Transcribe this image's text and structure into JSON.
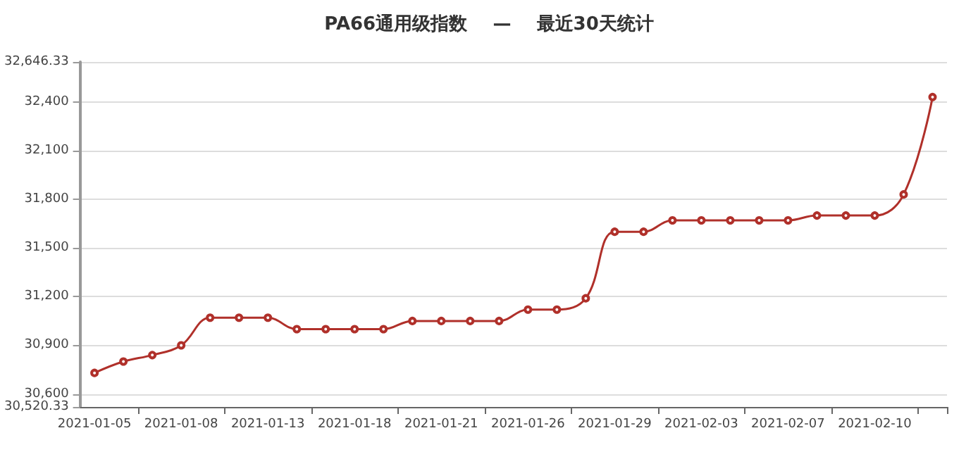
{
  "chart_data": {
    "type": "line",
    "title": "PA66通用级指数    —    最近30天统计",
    "categories": [
      "2021-01-05",
      null,
      null,
      "2021-01-08",
      null,
      null,
      "2021-01-13",
      null,
      null,
      "2021-01-18",
      null,
      null,
      "2021-01-21",
      null,
      null,
      "2021-01-26",
      null,
      null,
      "2021-01-29",
      null,
      null,
      "2021-02-03",
      null,
      null,
      "2021-02-07",
      null,
      null,
      "2021-02-10",
      null,
      null
    ],
    "series": [
      {
        "color": "#b0302a",
        "values": [
          30730,
          30800,
          30840,
          30900,
          31070,
          31070,
          31070,
          31000,
          31000,
          31000,
          31000,
          31050,
          31050,
          31050,
          31050,
          31120,
          31120,
          31190,
          31600,
          31600,
          31670,
          31670,
          31670,
          31670,
          31670,
          31700,
          31700,
          31700,
          31830,
          32430
        ]
      }
    ],
    "ylim": [
      30520.33,
      32646.33
    ],
    "yticks": [
      {
        "value": 30520.33,
        "label": "30,520.33"
      },
      {
        "value": 30600,
        "label": "30,600"
      },
      {
        "value": 30900,
        "label": "30,900"
      },
      {
        "value": 31200,
        "label": "31,200"
      },
      {
        "value": 31500,
        "label": "31,500"
      },
      {
        "value": 31800,
        "label": "31,800"
      },
      {
        "value": 32100,
        "label": "32,100"
      },
      {
        "value": 32400,
        "label": "32,400"
      },
      {
        "value": 32646.33,
        "label": "32,646.33"
      }
    ],
    "grid": "y",
    "marker": "circle",
    "line_style": "solid"
  }
}
